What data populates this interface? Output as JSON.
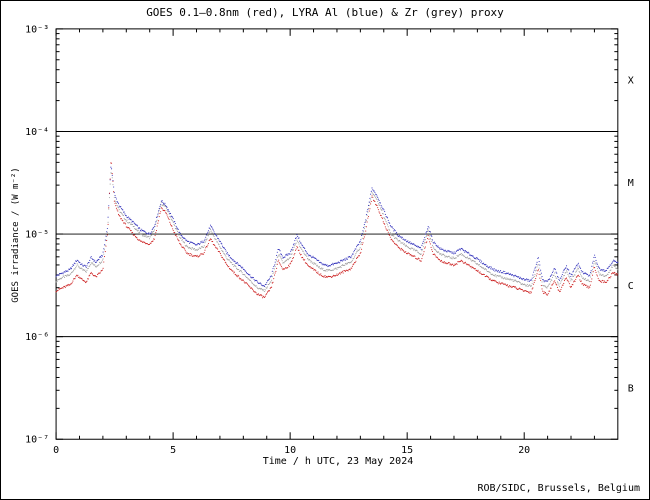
{
  "footer": "ROB/SIDC, Brussels, Belgium",
  "colors": {
    "goes_red": "#cc2222",
    "lyra_al_blue": "#3333bb",
    "lyra_zr_grey": "#9f9f9f",
    "axis": "#000000"
  },
  "chart_data": {
    "type": "line",
    "title": "GOES 0.1–0.8nm (red), LYRA Al (blue) & Zr (grey) proxy",
    "xlabel": "Time / h UTC, 23 May 2024",
    "ylabel": "GOES irradiance / (W m⁻²)",
    "x_range": [
      0,
      24
    ],
    "x_major_ticks": [
      0,
      5,
      10,
      15,
      20
    ],
    "x_minor_step": 1,
    "y_scale": "log",
    "y_log_range": [
      -7,
      -3
    ],
    "y_ticks": [
      {
        "exp": -3,
        "label": "10⁻³"
      },
      {
        "exp": -4,
        "label": "10⁻⁴"
      },
      {
        "exp": -5,
        "label": "10⁻⁵"
      },
      {
        "exp": -6,
        "label": "10⁻⁶"
      },
      {
        "exp": -7,
        "label": "10⁻⁷"
      }
    ],
    "hlines": [
      0.0001,
      1e-05,
      1e-06
    ],
    "class_labels": [
      {
        "label": "X",
        "mid_exp": -3.5
      },
      {
        "label": "M",
        "mid_exp": -4.5
      },
      {
        "label": "C",
        "mid_exp": -5.5
      },
      {
        "label": "B",
        "mid_exp": -6.5
      }
    ],
    "grid": false,
    "legend": "in title",
    "x": [
      0,
      0.3,
      0.6,
      0.9,
      1.1,
      1.3,
      1.5,
      1.7,
      2,
      2.2,
      2.35,
      2.5,
      2.7,
      3,
      3.3,
      3.6,
      4,
      4.2,
      4.5,
      4.7,
      5,
      5.3,
      5.6,
      6,
      6.3,
      6.6,
      6.8,
      7,
      7.3,
      7.6,
      8,
      8.3,
      8.6,
      8.9,
      9.2,
      9.5,
      9.7,
      10,
      10.3,
      10.5,
      10.8,
      11,
      11.3,
      11.6,
      12,
      12.3,
      12.6,
      13,
      13.2,
      13.5,
      13.7,
      14,
      14.3,
      14.6,
      15,
      15.3,
      15.6,
      15.9,
      16.1,
      16.4,
      16.7,
      17,
      17.3,
      17.6,
      18,
      18.4,
      18.8,
      19.2,
      19.6,
      20,
      20.3,
      20.6,
      20.8,
      21,
      21.3,
      21.5,
      21.8,
      22,
      22.3,
      22.5,
      22.8,
      23,
      23.2,
      23.5,
      23.8,
      24
    ],
    "series": [
      {
        "id": "lyra-zr",
        "name": "LYRA Zr proxy",
        "color": "#9f9f9f",
        "values": [
          3.5e-06,
          3.8e-06,
          4e-06,
          5e-06,
          4.5e-06,
          4.3e-06,
          5.3e-06,
          4.8e-06,
          5.6e-06,
          1.1e-05,
          4.4e-05,
          2.2e-05,
          1.7e-05,
          1.35e-05,
          1.2e-05,
          1e-05,
          9.2e-06,
          1.1e-05,
          2e-05,
          1.8e-05,
          1.3e-05,
          9.2e-06,
          7.5e-06,
          7e-06,
          7.5e-06,
          1.1e-05,
          9e-06,
          7.5e-06,
          5.8e-06,
          4.9e-06,
          4.1e-06,
          3.5e-06,
          3e-06,
          2.8e-06,
          3.5e-06,
          6.4e-06,
          5.2e-06,
          5.8e-06,
          8.7e-06,
          7e-06,
          5.6e-06,
          5.2e-06,
          4.6e-06,
          4.4e-06,
          4.6e-06,
          5e-06,
          5.3e-06,
          7.5e-06,
          1.2e-05,
          2.5e-05,
          2.2e-05,
          1.5e-05,
          1e-05,
          8.7e-06,
          7.5e-06,
          7e-06,
          6.4e-06,
          1.1e-05,
          7.5e-06,
          6.4e-06,
          6e-06,
          5.8e-06,
          6.4e-06,
          5.8e-06,
          5.1e-06,
          4.4e-06,
          3.9e-06,
          3.7e-06,
          3.5e-06,
          3.2e-06,
          3.1e-06,
          5.2e-06,
          3.1e-06,
          3e-06,
          4.1e-06,
          3.1e-06,
          4.4e-06,
          3.5e-06,
          4.6e-06,
          3.7e-06,
          3.5e-06,
          5.5e-06,
          4.1e-06,
          3.9e-06,
          4.9e-06,
          4.6e-06
        ]
      },
      {
        "id": "lyra-al",
        "name": "LYRA Al proxy",
        "color": "#3333bb",
        "values": [
          3.9e-06,
          4.2e-06,
          4.5e-06,
          5.6e-06,
          5e-06,
          4.8e-06,
          5.9e-06,
          5.3e-06,
          6.3e-06,
          1.2e-05,
          4.8e-05,
          2.4e-05,
          1.9e-05,
          1.5e-05,
          1.3e-05,
          1.1e-05,
          1e-05,
          1.2e-05,
          2.1e-05,
          1.9e-05,
          1.4e-05,
          1e-05,
          8.5e-06,
          7.8e-06,
          8.5e-06,
          1.2e-05,
          1e-05,
          8.5e-06,
          6.5e-06,
          5.5e-06,
          4.6e-06,
          3.9e-06,
          3.4e-06,
          3.1e-06,
          3.9e-06,
          7.2e-06,
          5.9e-06,
          6.5e-06,
          9.8e-06,
          7.8e-06,
          6.2e-06,
          5.9e-06,
          5.2e-06,
          4.9e-06,
          5.2e-06,
          5.6e-06,
          6e-06,
          8.5e-06,
          1.3e-05,
          2.8e-05,
          2.4e-05,
          1.7e-05,
          1.2e-05,
          9.8e-06,
          8.5e-06,
          7.8e-06,
          7.2e-06,
          1.2e-05,
          8.5e-06,
          7.2e-06,
          6.8e-06,
          6.5e-06,
          7.2e-06,
          6.5e-06,
          5.7e-06,
          4.9e-06,
          4.4e-06,
          4.2e-06,
          3.9e-06,
          3.6e-06,
          3.5e-06,
          5.9e-06,
          3.5e-06,
          3.4e-06,
          4.6e-06,
          3.5e-06,
          4.9e-06,
          3.9e-06,
          5.2e-06,
          4.2e-06,
          3.9e-06,
          6.2e-06,
          4.6e-06,
          4.4e-06,
          5.5e-06,
          5.2e-06
        ]
      },
      {
        "id": "goes",
        "name": "GOES 0.1–0.8nm",
        "color": "#cc2222",
        "values": [
          2.8e-06,
          3e-06,
          3.2e-06,
          4e-06,
          3.6e-06,
          3.4e-06,
          4.2e-06,
          3.8e-06,
          4.5e-06,
          1e-05,
          5.5e-05,
          2e-05,
          1.5e-05,
          1.2e-05,
          1e-05,
          8.5e-06,
          8e-06,
          9e-06,
          1.8e-05,
          1.6e-05,
          1.1e-05,
          8e-06,
          6.5e-06,
          6e-06,
          6.5e-06,
          9e-06,
          7.5e-06,
          6.5e-06,
          5e-06,
          4.2e-06,
          3.5e-06,
          3e-06,
          2.6e-06,
          2.4e-06,
          3e-06,
          5.5e-06,
          4.5e-06,
          5e-06,
          7.5e-06,
          6e-06,
          4.8e-06,
          4.5e-06,
          4e-06,
          3.8e-06,
          4e-06,
          4.3e-06,
          4.6e-06,
          6.5e-06,
          1e-05,
          2.3e-05,
          1.9e-05,
          1.3e-05,
          9e-06,
          7.5e-06,
          6.5e-06,
          6e-06,
          5.5e-06,
          9.5e-06,
          6.5e-06,
          5.5e-06,
          5.2e-06,
          5e-06,
          5.5e-06,
          5e-06,
          4.4e-06,
          3.8e-06,
          3.4e-06,
          3.2e-06,
          3e-06,
          2.8e-06,
          2.7e-06,
          4.5e-06,
          2.7e-06,
          2.6e-06,
          3.5e-06,
          2.7e-06,
          3.8e-06,
          3e-06,
          4e-06,
          3.2e-06,
          3e-06,
          4.8e-06,
          3.5e-06,
          3.4e-06,
          4.2e-06,
          4e-06
        ]
      }
    ]
  }
}
